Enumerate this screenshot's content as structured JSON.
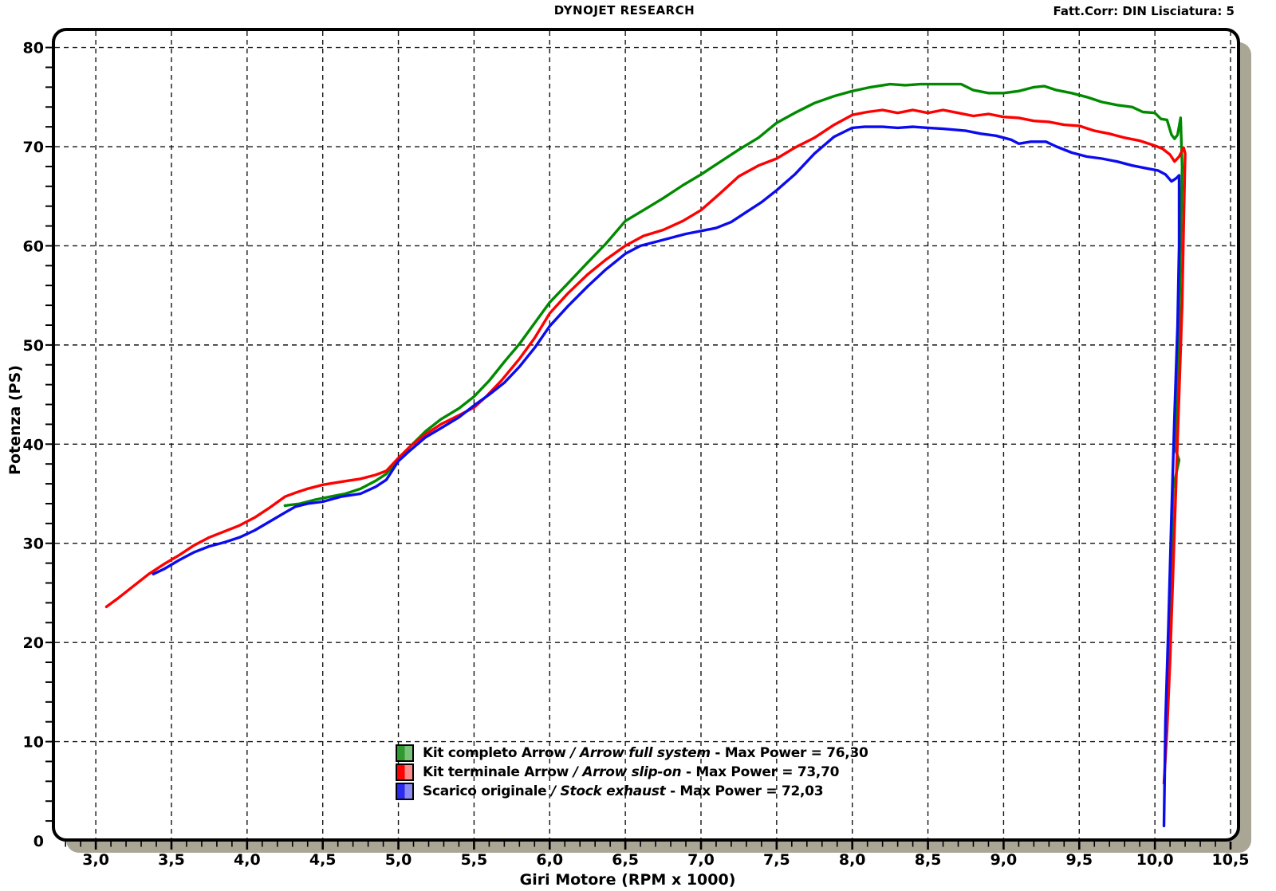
{
  "header": {
    "title": "DYNOJET RESEARCH",
    "correction": "Fatt.Corr: DIN  Lisciatura: 5"
  },
  "axes": {
    "x": {
      "label": "Giri Motore (RPM x 1000)",
      "min": 2.72,
      "max": 10.5,
      "minor_step": 0.1,
      "ticks": [
        {
          "v": 3.0,
          "label": "3,0"
        },
        {
          "v": 3.5,
          "label": "3,5"
        },
        {
          "v": 4.0,
          "label": "4,0"
        },
        {
          "v": 4.5,
          "label": "4,5"
        },
        {
          "v": 5.0,
          "label": "5,0"
        },
        {
          "v": 5.5,
          "label": "5,5"
        },
        {
          "v": 6.0,
          "label": "6,0"
        },
        {
          "v": 6.5,
          "label": "6,5"
        },
        {
          "v": 7.0,
          "label": "7,0"
        },
        {
          "v": 7.5,
          "label": "7,5"
        },
        {
          "v": 8.0,
          "label": "8,0"
        },
        {
          "v": 8.5,
          "label": "8,5"
        },
        {
          "v": 9.0,
          "label": "9,0"
        },
        {
          "v": 9.5,
          "label": "9,5"
        },
        {
          "v": 10.0,
          "label": "10,0"
        },
        {
          "v": 10.5,
          "label": "10,5"
        }
      ]
    },
    "y": {
      "label": "Potenza (PS)",
      "min": 0,
      "max": 81.8,
      "minor_step": 2,
      "ticks": [
        {
          "v": 0,
          "label": "0"
        },
        {
          "v": 10,
          "label": "10"
        },
        {
          "v": 20,
          "label": "20"
        },
        {
          "v": 30,
          "label": "30"
        },
        {
          "v": 40,
          "label": "40"
        },
        {
          "v": 50,
          "label": "50"
        },
        {
          "v": 60,
          "label": "60"
        },
        {
          "v": 70,
          "label": "70"
        },
        {
          "v": 80,
          "label": "80"
        }
      ]
    }
  },
  "colors": {
    "grid": "#151515",
    "frame": "#000000",
    "frame_shadow": "#a9a695",
    "background": "#ffffff"
  },
  "legend": {
    "items": [
      {
        "name": "Kit completo Arrow",
        "name_english": "/ Arrow full system",
        "max_label": "- Max Power = 76,30",
        "swatch_color": "#2f9a2f",
        "swatch_light": "#79c279"
      },
      {
        "name": "Kit terminale Arrow",
        "name_english": "/ Arrow slip-on",
        "max_label": "- Max Power = 73,70",
        "swatch_color": "#fd0000",
        "swatch_light": "#fb8c8c"
      },
      {
        "name": "Scarico originale",
        "name_english": "/ Stock exhaust",
        "max_label": "- Max Power = 72,03",
        "swatch_color": "#2a2af0",
        "swatch_light": "#8c8cf0"
      }
    ]
  },
  "chart_data": {
    "type": "line",
    "title": "DYNOJET RESEARCH",
    "xlabel": "Giri Motore (RPM x 1000)",
    "ylabel": "Potenza (PS)",
    "xlim": [
      2.72,
      10.5
    ],
    "ylim": [
      0,
      81.8
    ],
    "grid": "dashed",
    "legend_position": "bottom-center-inside",
    "series": [
      {
        "name": "Kit completo Arrow / Arrow full system",
        "max_power": "76,30",
        "color": "#008a00",
        "points": [
          [
            4.25,
            33.8
          ],
          [
            4.35,
            34.0
          ],
          [
            4.45,
            34.4
          ],
          [
            4.55,
            34.7
          ],
          [
            4.65,
            35.0
          ],
          [
            4.75,
            35.5
          ],
          [
            4.85,
            36.3
          ],
          [
            4.92,
            37.0
          ],
          [
            5.0,
            38.5
          ],
          [
            5.08,
            39.8
          ],
          [
            5.18,
            41.3
          ],
          [
            5.28,
            42.5
          ],
          [
            5.4,
            43.6
          ],
          [
            5.5,
            44.8
          ],
          [
            5.6,
            46.4
          ],
          [
            5.7,
            48.3
          ],
          [
            5.8,
            50.1
          ],
          [
            5.9,
            52.2
          ],
          [
            6.0,
            54.3
          ],
          [
            6.12,
            56.2
          ],
          [
            6.25,
            58.3
          ],
          [
            6.37,
            60.2
          ],
          [
            6.5,
            62.5
          ],
          [
            6.62,
            63.6
          ],
          [
            6.75,
            64.8
          ],
          [
            6.88,
            66.1
          ],
          [
            7.0,
            67.2
          ],
          [
            7.12,
            68.4
          ],
          [
            7.25,
            69.7
          ],
          [
            7.38,
            70.9
          ],
          [
            7.5,
            72.4
          ],
          [
            7.62,
            73.4
          ],
          [
            7.75,
            74.4
          ],
          [
            7.88,
            75.1
          ],
          [
            8.0,
            75.6
          ],
          [
            8.12,
            76.0
          ],
          [
            8.25,
            76.3
          ],
          [
            8.35,
            76.2
          ],
          [
            8.45,
            76.3
          ],
          [
            8.55,
            76.3
          ],
          [
            8.65,
            76.3
          ],
          [
            8.72,
            76.3
          ],
          [
            8.8,
            75.7
          ],
          [
            8.9,
            75.4
          ],
          [
            9.0,
            75.4
          ],
          [
            9.1,
            75.6
          ],
          [
            9.2,
            76.0
          ],
          [
            9.27,
            76.1
          ],
          [
            9.35,
            75.7
          ],
          [
            9.45,
            75.4
          ],
          [
            9.55,
            75.0
          ],
          [
            9.65,
            74.5
          ],
          [
            9.75,
            74.2
          ],
          [
            9.85,
            74.0
          ],
          [
            9.92,
            73.5
          ],
          [
            10.0,
            73.4
          ],
          [
            10.04,
            72.8
          ],
          [
            10.08,
            72.7
          ],
          [
            10.11,
            71.2
          ],
          [
            10.13,
            70.8
          ],
          [
            10.15,
            71.2
          ],
          [
            10.17,
            72.9
          ],
          [
            10.18,
            68.0
          ],
          [
            10.17,
            60.0
          ],
          [
            10.16,
            52.0
          ],
          [
            10.15,
            44.0
          ],
          [
            10.13,
            39.7
          ],
          [
            10.16,
            38.4
          ],
          [
            10.12,
            35.5
          ],
          [
            10.11,
            29.0
          ],
          [
            10.1,
            24.0
          ],
          [
            10.09,
            19.0
          ],
          [
            10.08,
            15.6
          ]
        ]
      },
      {
        "name": "Kit terminale Arrow / Arrow slip-on",
        "max_power": "73,70",
        "color": "#ff0000",
        "points": [
          [
            3.07,
            23.6
          ],
          [
            3.15,
            24.5
          ],
          [
            3.25,
            25.7
          ],
          [
            3.35,
            26.9
          ],
          [
            3.45,
            27.9
          ],
          [
            3.55,
            28.8
          ],
          [
            3.65,
            29.8
          ],
          [
            3.75,
            30.6
          ],
          [
            3.85,
            31.2
          ],
          [
            3.95,
            31.8
          ],
          [
            4.05,
            32.6
          ],
          [
            4.15,
            33.6
          ],
          [
            4.25,
            34.7
          ],
          [
            4.32,
            35.1
          ],
          [
            4.4,
            35.5
          ],
          [
            4.5,
            35.9
          ],
          [
            4.62,
            36.2
          ],
          [
            4.75,
            36.5
          ],
          [
            4.85,
            36.9
          ],
          [
            4.92,
            37.3
          ],
          [
            5.0,
            38.6
          ],
          [
            5.08,
            39.8
          ],
          [
            5.18,
            41.0
          ],
          [
            5.28,
            42.0
          ],
          [
            5.4,
            42.9
          ],
          [
            5.5,
            43.7
          ],
          [
            5.58,
            44.8
          ],
          [
            5.68,
            46.4
          ],
          [
            5.8,
            48.6
          ],
          [
            5.9,
            50.7
          ],
          [
            6.0,
            53.2
          ],
          [
            6.12,
            55.2
          ],
          [
            6.25,
            57.1
          ],
          [
            6.37,
            58.6
          ],
          [
            6.5,
            60.0
          ],
          [
            6.62,
            61.0
          ],
          [
            6.75,
            61.6
          ],
          [
            6.88,
            62.5
          ],
          [
            7.0,
            63.6
          ],
          [
            7.12,
            65.2
          ],
          [
            7.25,
            67.0
          ],
          [
            7.38,
            68.1
          ],
          [
            7.5,
            68.8
          ],
          [
            7.62,
            69.9
          ],
          [
            7.75,
            70.9
          ],
          [
            7.88,
            72.2
          ],
          [
            8.0,
            73.2
          ],
          [
            8.1,
            73.5
          ],
          [
            8.2,
            73.7
          ],
          [
            8.3,
            73.4
          ],
          [
            8.4,
            73.7
          ],
          [
            8.5,
            73.4
          ],
          [
            8.6,
            73.7
          ],
          [
            8.7,
            73.4
          ],
          [
            8.8,
            73.1
          ],
          [
            8.9,
            73.3
          ],
          [
            9.0,
            73.0
          ],
          [
            9.1,
            72.9
          ],
          [
            9.2,
            72.6
          ],
          [
            9.3,
            72.5
          ],
          [
            9.4,
            72.2
          ],
          [
            9.5,
            72.1
          ],
          [
            9.6,
            71.6
          ],
          [
            9.7,
            71.3
          ],
          [
            9.8,
            70.9
          ],
          [
            9.9,
            70.6
          ],
          [
            10.0,
            70.1
          ],
          [
            10.05,
            69.8
          ],
          [
            10.1,
            69.2
          ],
          [
            10.13,
            68.5
          ],
          [
            10.16,
            69.0
          ],
          [
            10.19,
            69.9
          ],
          [
            10.2,
            69.3
          ],
          [
            10.19,
            62.0
          ],
          [
            10.18,
            54.0
          ],
          [
            10.16,
            45.0
          ],
          [
            10.14,
            36.0
          ],
          [
            10.12,
            27.0
          ],
          [
            10.1,
            18.0
          ],
          [
            10.08,
            11.0
          ],
          [
            10.06,
            5.8
          ]
        ]
      },
      {
        "name": "Scarico originale / Stock exhaust",
        "max_power": "72,03",
        "color": "#0b0bee",
        "points": [
          [
            3.38,
            26.9
          ],
          [
            3.45,
            27.4
          ],
          [
            3.55,
            28.3
          ],
          [
            3.65,
            29.1
          ],
          [
            3.75,
            29.7
          ],
          [
            3.85,
            30.1
          ],
          [
            3.95,
            30.6
          ],
          [
            4.05,
            31.3
          ],
          [
            4.15,
            32.2
          ],
          [
            4.25,
            33.1
          ],
          [
            4.32,
            33.7
          ],
          [
            4.4,
            34.0
          ],
          [
            4.5,
            34.2
          ],
          [
            4.62,
            34.7
          ],
          [
            4.75,
            35.0
          ],
          [
            4.85,
            35.7
          ],
          [
            4.92,
            36.4
          ],
          [
            5.0,
            38.3
          ],
          [
            5.08,
            39.4
          ],
          [
            5.18,
            40.7
          ],
          [
            5.28,
            41.6
          ],
          [
            5.4,
            42.7
          ],
          [
            5.5,
            43.9
          ],
          [
            5.6,
            45.0
          ],
          [
            5.7,
            46.2
          ],
          [
            5.8,
            47.8
          ],
          [
            5.9,
            49.7
          ],
          [
            6.0,
            51.9
          ],
          [
            6.12,
            53.9
          ],
          [
            6.25,
            55.9
          ],
          [
            6.37,
            57.6
          ],
          [
            6.5,
            59.2
          ],
          [
            6.6,
            60.0
          ],
          [
            6.7,
            60.4
          ],
          [
            6.8,
            60.8
          ],
          [
            6.9,
            61.2
          ],
          [
            7.0,
            61.5
          ],
          [
            7.1,
            61.8
          ],
          [
            7.2,
            62.4
          ],
          [
            7.3,
            63.4
          ],
          [
            7.4,
            64.4
          ],
          [
            7.5,
            65.6
          ],
          [
            7.62,
            67.2
          ],
          [
            7.75,
            69.3
          ],
          [
            7.88,
            71.0
          ],
          [
            8.0,
            71.9
          ],
          [
            8.08,
            72.0
          ],
          [
            8.2,
            72.0
          ],
          [
            8.3,
            71.9
          ],
          [
            8.4,
            72.0
          ],
          [
            8.5,
            71.9
          ],
          [
            8.6,
            71.8
          ],
          [
            8.75,
            71.6
          ],
          [
            8.85,
            71.3
          ],
          [
            8.95,
            71.1
          ],
          [
            9.05,
            70.7
          ],
          [
            9.1,
            70.3
          ],
          [
            9.18,
            70.5
          ],
          [
            9.28,
            70.5
          ],
          [
            9.35,
            70.0
          ],
          [
            9.45,
            69.4
          ],
          [
            9.55,
            69.0
          ],
          [
            9.65,
            68.8
          ],
          [
            9.75,
            68.5
          ],
          [
            9.85,
            68.1
          ],
          [
            9.95,
            67.8
          ],
          [
            10.02,
            67.6
          ],
          [
            10.07,
            67.2
          ],
          [
            10.11,
            66.5
          ],
          [
            10.14,
            66.8
          ],
          [
            10.16,
            67.1
          ],
          [
            10.16,
            60.0
          ],
          [
            10.15,
            52.0
          ],
          [
            10.13,
            43.0
          ],
          [
            10.11,
            33.0
          ],
          [
            10.09,
            22.0
          ],
          [
            10.07,
            12.0
          ],
          [
            10.06,
            1.5
          ]
        ]
      }
    ]
  }
}
